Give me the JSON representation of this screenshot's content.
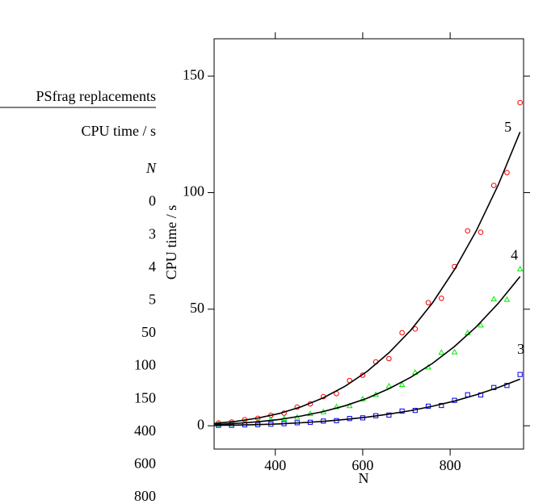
{
  "psfrag": {
    "title": "PSfrag replacements",
    "items": [
      "CPU time / s",
      "N",
      "0",
      "3",
      "4",
      "5",
      "50",
      "100",
      "150",
      "400",
      "600",
      "800"
    ]
  },
  "chart_data": {
    "type": "scatter",
    "xlabel": "N",
    "ylabel": "CPU time / s",
    "xlim": [
      260,
      968
    ],
    "ylim": [
      -10,
      166
    ],
    "xticks": [
      400,
      600,
      800
    ],
    "yticks": [
      0,
      50,
      100,
      150
    ],
    "x": [
      270,
      300,
      330,
      360,
      390,
      420,
      450,
      480,
      510,
      540,
      570,
      600,
      630,
      660,
      690,
      720,
      750,
      780,
      810,
      840,
      870,
      900,
      930,
      960
    ],
    "fit_x": [
      260,
      310,
      360,
      410,
      460,
      510,
      560,
      610,
      660,
      710,
      760,
      810,
      860,
      910,
      960
    ],
    "fit_color": "#000000",
    "series": [
      {
        "name": "5",
        "color": "#ff0000",
        "marker": "circle",
        "values": [
          1.2,
          1.6,
          2.6,
          3.2,
          4.5,
          5.4,
          8.0,
          9.4,
          12.5,
          13.8,
          19.4,
          21.7,
          27.4,
          28.8,
          39.9,
          41.5,
          52.8,
          54.7,
          68.3,
          83.6,
          83.0,
          103.1,
          108.6,
          138.6
        ],
        "fit": [
          1.0,
          1.9,
          3.3,
          5.3,
          8.2,
          12.0,
          17.0,
          23.3,
          31.3,
          41.0,
          52.8,
          67.0,
          83.7,
          103.3,
          126.0
        ]
      },
      {
        "name": "4",
        "color": "#00ee00",
        "marker": "triangle",
        "values": [
          0.6,
          0.8,
          1.2,
          1.6,
          2.5,
          3.0,
          3.6,
          5.1,
          5.9,
          8.1,
          8.5,
          11.4,
          13.3,
          17.0,
          17.6,
          22.8,
          25.1,
          31.4,
          31.6,
          39.8,
          43.1,
          54.3,
          54.1,
          67.2
        ],
        "fit": [
          0.5,
          1.0,
          1.7,
          2.7,
          4.2,
          6.1,
          8.6,
          11.8,
          15.9,
          20.8,
          26.8,
          34.0,
          42.5,
          52.5,
          64.0
        ]
      },
      {
        "name": "3",
        "color": "#0000ee",
        "marker": "square",
        "values": [
          0.2,
          0.2,
          0.4,
          0.5,
          0.7,
          0.9,
          1.3,
          1.5,
          2.0,
          2.2,
          3.1,
          3.4,
          4.3,
          4.6,
          6.3,
          6.6,
          8.4,
          8.7,
          10.9,
          13.3,
          13.2,
          16.4,
          17.3,
          22.0
        ],
        "fit": [
          0.2,
          0.3,
          0.5,
          0.8,
          1.3,
          1.9,
          2.7,
          3.7,
          5.0,
          6.5,
          8.4,
          10.6,
          13.3,
          16.4,
          20.0
        ]
      }
    ]
  }
}
